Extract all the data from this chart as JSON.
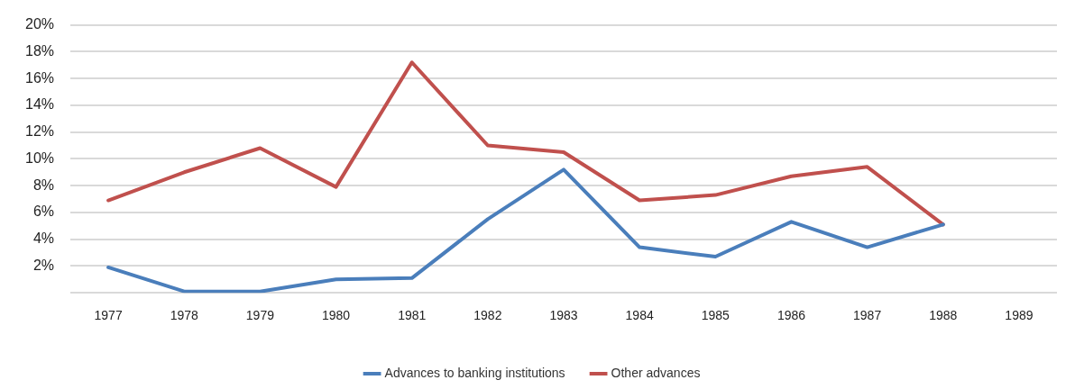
{
  "chart_data": {
    "type": "line",
    "categories": [
      "1977",
      "1978",
      "1979",
      "1980",
      "1981",
      "1982",
      "1983",
      "1984",
      "1985",
      "1986",
      "1987",
      "1988",
      "1989"
    ],
    "series": [
      {
        "name": "Advances to banking institutions",
        "color": "#4a7ebb",
        "values": [
          1.9,
          0.1,
          0.1,
          1.0,
          1.1,
          5.5,
          9.2,
          3.4,
          2.7,
          5.3,
          3.4,
          5.1,
          null
        ]
      },
      {
        "name": "Other advances",
        "color": "#c0504d",
        "values": [
          6.9,
          9.0,
          10.8,
          7.9,
          17.2,
          11.0,
          10.5,
          6.9,
          7.3,
          8.7,
          9.4,
          5.1,
          null
        ]
      }
    ],
    "ylim": [
      0,
      20
    ],
    "yticks": [
      {
        "value": 0,
        "label": null
      },
      {
        "value": 2,
        "label": "2%"
      },
      {
        "value": 4,
        "label": "4%"
      },
      {
        "value": 6,
        "label": "6%"
      },
      {
        "value": 8,
        "label": "8%"
      },
      {
        "value": 10,
        "label": "10%"
      },
      {
        "value": 12,
        "label": "12%"
      },
      {
        "value": 14,
        "label": "14%"
      },
      {
        "value": 16,
        "label": "16%"
      },
      {
        "value": 18,
        "label": "18%"
      },
      {
        "value": 20,
        "label": "20%"
      }
    ],
    "grid": "y",
    "legend": "bottom",
    "marker": "none",
    "line_style": "solid"
  }
}
